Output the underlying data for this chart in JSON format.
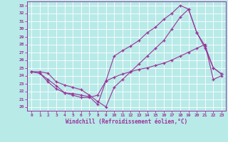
{
  "xlabel": "Windchill (Refroidissement éolien,°C)",
  "x": [
    0,
    1,
    2,
    3,
    4,
    5,
    6,
    7,
    8,
    9,
    10,
    11,
    12,
    13,
    14,
    15,
    16,
    17,
    18,
    19,
    20,
    21,
    22,
    23
  ],
  "line1": [
    24.5,
    24.5,
    24.3,
    23.2,
    22.8,
    22.5,
    22.2,
    21.5,
    20.7,
    20.0,
    22.5,
    23.5,
    24.5,
    25.5,
    26.5,
    27.5,
    28.5,
    30.0,
    31.5,
    32.5,
    29.5,
    27.5,
    25.0,
    24.2
  ],
  "line2": [
    24.5,
    24.3,
    23.2,
    22.3,
    21.8,
    21.5,
    21.2,
    21.2,
    21.5,
    23.3,
    23.8,
    24.2,
    24.5,
    24.8,
    25.0,
    25.3,
    25.6,
    26.0,
    26.5,
    27.0,
    27.5,
    28.0,
    23.5,
    24.0
  ],
  "line3": [
    24.5,
    24.3,
    23.5,
    22.7,
    21.8,
    21.7,
    21.5,
    21.3,
    20.3,
    23.3,
    26.5,
    27.2,
    27.8,
    28.5,
    29.5,
    30.2,
    31.2,
    32.0,
    33.0,
    32.5,
    29.5,
    27.8,
    25.0,
    24.2
  ],
  "line_color": "#993399",
  "bg_color": "#b8eae8",
  "grid_color": "#d0f0f0",
  "ylim": [
    19.5,
    33.5
  ],
  "xlim": [
    -0.5,
    23.5
  ],
  "yticks": [
    20,
    21,
    22,
    23,
    24,
    25,
    26,
    27,
    28,
    29,
    30,
    31,
    32,
    33
  ],
  "xticks": [
    0,
    1,
    2,
    3,
    4,
    5,
    6,
    7,
    8,
    9,
    10,
    11,
    12,
    13,
    14,
    15,
    16,
    17,
    18,
    19,
    20,
    21,
    22,
    23
  ],
  "tick_fontsize": 4.5,
  "xlabel_fontsize": 5.5
}
